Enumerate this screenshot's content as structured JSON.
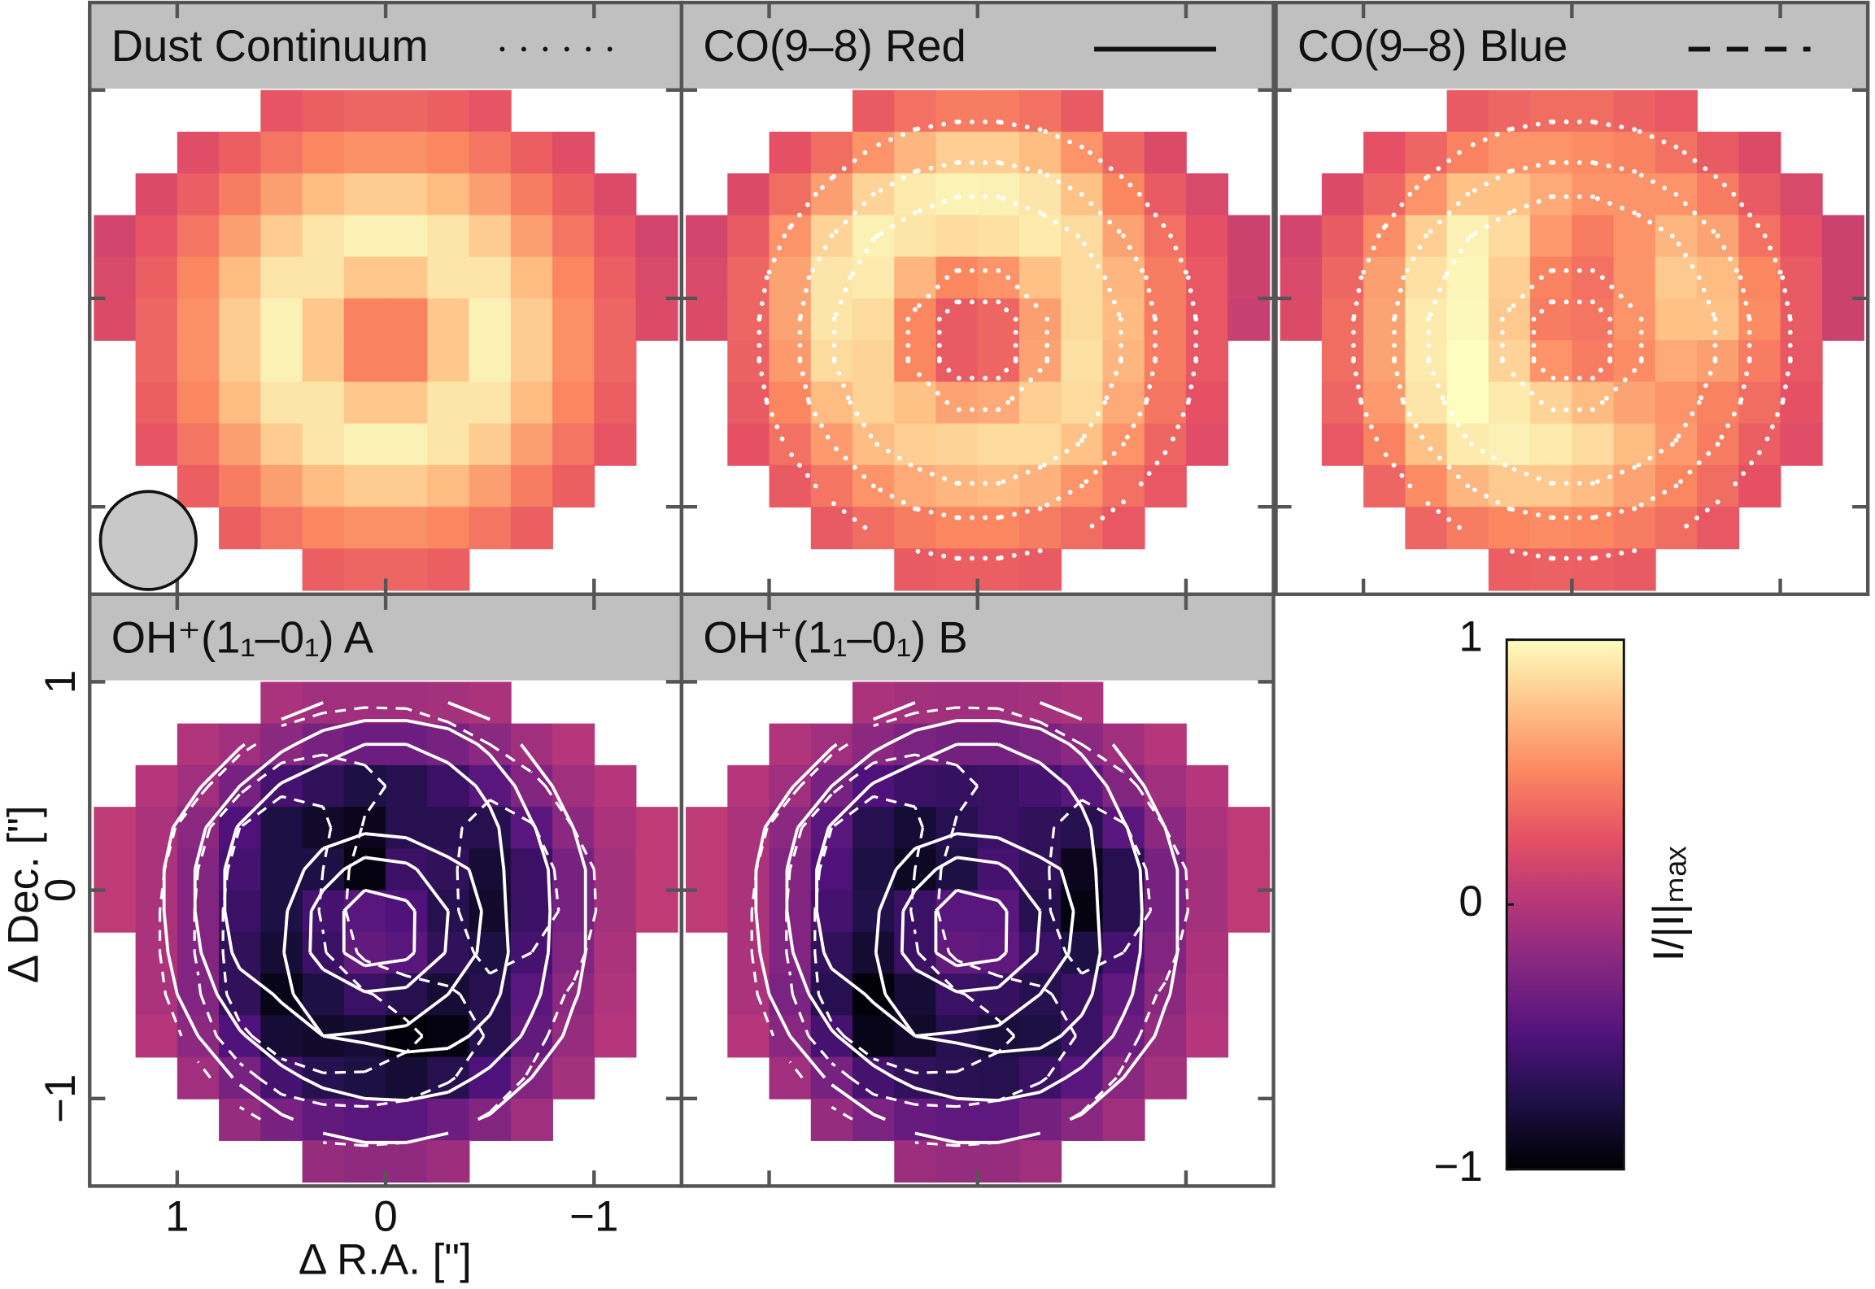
{
  "chart_data": {
    "type": "heatmap",
    "xlabel": "Δ R.A. [\"]",
    "ylabel": "Δ Dec. [\"]",
    "xlim": [
      1.42,
      -1.42
    ],
    "ylim": [
      -1.42,
      1.42
    ],
    "xticks": [
      1,
      0,
      {
        "value": -1,
        "label": "−1"
      }
    ],
    "yticks": [
      1,
      0,
      {
        "value": -1,
        "label": "−1"
      }
    ],
    "colormap": "magma",
    "colorbar": {
      "label": "I/|I|ₘₐₓ",
      "lim": [
        -1,
        1
      ],
      "ticks": [
        1,
        0,
        {
          "value": -1,
          "label": "−1"
        }
      ]
    },
    "contour_levels": [
      0.4,
      0.6,
      0.8
    ],
    "x": [
      1.3,
      1.1,
      0.9,
      0.7,
      0.5,
      0.3,
      0.1,
      -0.1,
      -0.3,
      -0.5,
      -0.7,
      -0.9,
      -1.1,
      -1.3
    ],
    "y": [
      0.9,
      0.7,
      0.5,
      0.3,
      0.1,
      -0.1,
      -0.3,
      -0.5,
      -0.7,
      -0.9,
      -1.1,
      -1.3
    ],
    "panels": [
      {
        "title": "Dust Continuum",
        "linestyle": "dotted",
        "overlay": [],
        "values": [
          [
            null,
            null,
            null,
            null,
            0.27,
            0.32,
            0.35,
            0.35,
            0.32,
            0.27,
            null,
            null,
            null,
            null
          ],
          [
            null,
            null,
            0.22,
            0.32,
            0.42,
            0.5,
            0.54,
            0.54,
            0.5,
            0.42,
            0.32,
            0.22,
            null,
            null
          ],
          [
            null,
            0.2,
            0.32,
            0.45,
            0.6,
            0.72,
            0.79,
            0.79,
            0.72,
            0.6,
            0.45,
            0.32,
            0.2,
            null
          ],
          [
            0.15,
            0.27,
            0.42,
            0.6,
            0.79,
            0.9,
            0.95,
            0.95,
            0.9,
            0.79,
            0.6,
            0.42,
            0.27,
            0.15
          ],
          [
            0.18,
            0.32,
            0.5,
            0.72,
            0.9,
            0.9,
            0.77,
            0.77,
            0.9,
            0.9,
            0.72,
            0.5,
            0.32,
            0.18
          ],
          [
            0.2,
            0.35,
            0.54,
            0.79,
            0.95,
            0.77,
            0.48,
            0.48,
            0.77,
            0.95,
            0.79,
            0.54,
            0.35,
            0.2
          ],
          [
            null,
            0.35,
            0.54,
            0.79,
            0.95,
            0.77,
            0.48,
            0.48,
            0.77,
            0.95,
            0.79,
            0.54,
            0.35,
            null
          ],
          [
            null,
            0.32,
            0.5,
            0.72,
            0.9,
            0.9,
            0.77,
            0.77,
            0.9,
            0.9,
            0.72,
            0.5,
            0.32,
            null
          ],
          [
            null,
            0.27,
            0.42,
            0.6,
            0.79,
            0.9,
            0.95,
            0.95,
            0.9,
            0.79,
            0.6,
            0.42,
            0.27,
            null
          ],
          [
            null,
            null,
            0.32,
            0.45,
            0.6,
            0.72,
            0.79,
            0.79,
            0.72,
            0.6,
            0.45,
            0.32,
            null,
            null
          ],
          [
            null,
            null,
            null,
            0.32,
            0.42,
            0.5,
            0.54,
            0.54,
            0.5,
            0.42,
            0.32,
            null,
            null,
            null
          ],
          [
            null,
            null,
            null,
            null,
            null,
            0.32,
            0.35,
            0.35,
            0.32,
            null,
            null,
            null,
            null,
            null
          ]
        ]
      },
      {
        "title": "CO(9–8) Red",
        "linestyle": "solid",
        "overlay": [
          0
        ],
        "values": [
          [
            null,
            null,
            null,
            null,
            0.3,
            0.4,
            0.45,
            0.45,
            0.4,
            0.3,
            null,
            null,
            null,
            null
          ],
          [
            null,
            null,
            0.25,
            0.38,
            0.55,
            0.7,
            0.8,
            0.8,
            0.72,
            0.55,
            0.35,
            0.2,
            null,
            null
          ],
          [
            null,
            0.2,
            0.38,
            0.6,
            0.82,
            0.92,
            0.96,
            0.95,
            0.9,
            0.75,
            0.5,
            0.3,
            0.18,
            null
          ],
          [
            0.15,
            0.3,
            0.55,
            0.82,
            0.95,
            0.9,
            0.85,
            0.88,
            0.92,
            0.85,
            0.62,
            0.4,
            0.25,
            0.12
          ],
          [
            0.18,
            0.35,
            0.62,
            0.9,
            0.92,
            0.7,
            0.5,
            0.55,
            0.75,
            0.85,
            0.7,
            0.45,
            0.28,
            0.12
          ],
          [
            0.2,
            0.35,
            0.62,
            0.9,
            0.85,
            0.5,
            0.3,
            0.35,
            0.6,
            0.85,
            0.72,
            0.45,
            0.28,
            0.1
          ],
          [
            null,
            0.33,
            0.58,
            0.85,
            0.82,
            0.5,
            0.3,
            0.35,
            0.62,
            0.88,
            0.7,
            0.45,
            0.28,
            null
          ],
          [
            null,
            0.3,
            0.5,
            0.72,
            0.82,
            0.75,
            0.62,
            0.65,
            0.8,
            0.85,
            0.65,
            0.42,
            0.25,
            null
          ],
          [
            null,
            0.25,
            0.4,
            0.58,
            0.72,
            0.8,
            0.82,
            0.85,
            0.85,
            0.75,
            0.55,
            0.35,
            0.22,
            null
          ],
          [
            null,
            null,
            0.3,
            0.42,
            0.55,
            0.65,
            0.7,
            0.72,
            0.68,
            0.55,
            0.4,
            0.28,
            null,
            null
          ],
          [
            null,
            null,
            null,
            0.3,
            0.38,
            0.45,
            0.5,
            0.5,
            0.45,
            0.38,
            0.28,
            null,
            null,
            null
          ],
          [
            null,
            null,
            null,
            null,
            null,
            0.3,
            0.32,
            0.32,
            0.3,
            null,
            null,
            null,
            null,
            null
          ]
        ]
      },
      {
        "title": "CO(9–8) Blue",
        "linestyle": "dashed",
        "overlay": [
          0
        ],
        "values": [
          [
            null,
            null,
            null,
            null,
            0.3,
            0.35,
            0.38,
            0.38,
            0.33,
            0.28,
            null,
            null,
            null,
            null
          ],
          [
            null,
            null,
            0.25,
            0.35,
            0.48,
            0.55,
            0.55,
            0.52,
            0.48,
            0.4,
            0.3,
            0.2,
            null,
            null
          ],
          [
            null,
            0.2,
            0.35,
            0.55,
            0.75,
            0.75,
            0.65,
            0.55,
            0.55,
            0.55,
            0.45,
            0.3,
            0.18,
            null
          ],
          [
            0.15,
            0.3,
            0.52,
            0.8,
            0.95,
            0.85,
            0.58,
            0.45,
            0.55,
            0.7,
            0.62,
            0.4,
            0.25,
            0.12
          ],
          [
            0.18,
            0.35,
            0.6,
            0.88,
            0.97,
            0.8,
            0.48,
            0.4,
            0.55,
            0.78,
            0.72,
            0.5,
            0.3,
            0.12
          ],
          [
            0.2,
            0.38,
            0.62,
            0.92,
            0.98,
            0.78,
            0.45,
            0.42,
            0.55,
            0.75,
            0.75,
            0.52,
            0.3,
            0.12
          ],
          [
            null,
            0.38,
            0.62,
            0.92,
            1.0,
            0.82,
            0.55,
            0.45,
            0.52,
            0.65,
            0.6,
            0.45,
            0.28,
            null
          ],
          [
            null,
            0.35,
            0.58,
            0.9,
            1.0,
            0.92,
            0.82,
            0.72,
            0.62,
            0.55,
            0.48,
            0.38,
            0.25,
            null
          ],
          [
            null,
            0.28,
            0.48,
            0.75,
            0.92,
            0.95,
            0.92,
            0.85,
            0.72,
            0.58,
            0.45,
            0.32,
            0.22,
            null
          ],
          [
            null,
            null,
            0.35,
            0.52,
            0.7,
            0.78,
            0.78,
            0.72,
            0.62,
            0.5,
            0.38,
            0.25,
            null,
            null
          ],
          [
            null,
            null,
            null,
            0.35,
            0.45,
            0.5,
            0.52,
            0.5,
            0.45,
            0.38,
            0.28,
            null,
            null,
            null
          ],
          [
            null,
            null,
            null,
            null,
            null,
            0.32,
            0.33,
            0.32,
            0.3,
            null,
            null,
            null,
            null,
            null
          ]
        ]
      },
      {
        "title": "OH⁺(1₁–0₁) A",
        "overlay": [
          1,
          2
        ],
        "values": [
          [
            null,
            null,
            null,
            null,
            -0.05,
            -0.1,
            -0.1,
            -0.1,
            -0.08,
            -0.05,
            null,
            null,
            null,
            null
          ],
          [
            null,
            null,
            -0.02,
            -0.1,
            -0.2,
            -0.3,
            -0.35,
            -0.35,
            -0.3,
            -0.2,
            -0.1,
            0.0,
            null,
            null
          ],
          [
            null,
            0.0,
            -0.1,
            -0.3,
            -0.55,
            -0.65,
            -0.75,
            -0.7,
            -0.6,
            -0.45,
            -0.25,
            -0.1,
            0.0,
            null
          ],
          [
            0.05,
            -0.05,
            -0.2,
            -0.5,
            -0.75,
            -0.85,
            -0.9,
            -0.7,
            -0.7,
            -0.7,
            -0.45,
            -0.2,
            -0.05,
            0.05
          ],
          [
            0.05,
            -0.05,
            -0.25,
            -0.55,
            -0.75,
            -0.75,
            -0.95,
            -0.6,
            -0.65,
            -0.8,
            -0.6,
            -0.3,
            -0.08,
            0.05
          ],
          [
            0.05,
            -0.05,
            -0.25,
            -0.6,
            -0.75,
            -0.55,
            -0.45,
            -0.5,
            -0.7,
            -0.85,
            -0.6,
            -0.3,
            -0.08,
            0.05
          ],
          [
            null,
            -0.05,
            -0.25,
            -0.65,
            -0.8,
            -0.6,
            -0.4,
            -0.45,
            -0.65,
            -0.75,
            -0.55,
            -0.25,
            -0.05,
            null
          ],
          [
            null,
            -0.05,
            -0.25,
            -0.65,
            -0.92,
            -0.75,
            -0.6,
            -0.7,
            -0.8,
            -0.7,
            -0.45,
            -0.2,
            -0.03,
            null
          ],
          [
            null,
            0.0,
            -0.2,
            -0.5,
            -0.8,
            -0.85,
            -0.8,
            -0.98,
            -0.95,
            -0.7,
            -0.4,
            -0.15,
            0.0,
            null
          ],
          [
            null,
            null,
            -0.1,
            -0.3,
            -0.55,
            -0.7,
            -0.75,
            -0.8,
            -0.7,
            -0.5,
            -0.25,
            -0.08,
            null,
            null
          ],
          [
            null,
            null,
            null,
            -0.15,
            -0.3,
            -0.4,
            -0.45,
            -0.45,
            -0.35,
            -0.25,
            -0.1,
            null,
            null,
            null
          ],
          [
            null,
            null,
            null,
            null,
            null,
            -0.15,
            -0.18,
            -0.18,
            -0.12,
            null,
            null,
            null,
            null,
            null
          ]
        ]
      },
      {
        "title": "OH⁺(1₁–0₁) B",
        "overlay": [
          1,
          2
        ],
        "values": [
          [
            null,
            null,
            null,
            null,
            -0.05,
            -0.08,
            -0.1,
            -0.1,
            -0.08,
            -0.05,
            null,
            null,
            null,
            null
          ],
          [
            null,
            null,
            -0.02,
            -0.1,
            -0.2,
            -0.28,
            -0.32,
            -0.32,
            -0.28,
            -0.2,
            -0.1,
            0.0,
            null,
            null
          ],
          [
            null,
            0.0,
            -0.1,
            -0.3,
            -0.5,
            -0.6,
            -0.62,
            -0.6,
            -0.55,
            -0.45,
            -0.25,
            -0.1,
            0.0,
            null
          ],
          [
            0.05,
            -0.05,
            -0.2,
            -0.45,
            -0.7,
            -0.8,
            -0.7,
            -0.6,
            -0.65,
            -0.7,
            -0.45,
            -0.2,
            -0.05,
            0.05
          ],
          [
            0.05,
            -0.05,
            -0.25,
            -0.5,
            -0.75,
            -0.88,
            -0.75,
            -0.55,
            -0.65,
            -0.9,
            -0.7,
            -0.3,
            -0.08,
            0.05
          ],
          [
            0.05,
            -0.05,
            -0.25,
            -0.55,
            -0.72,
            -0.6,
            -0.45,
            -0.45,
            -0.7,
            -0.95,
            -0.7,
            -0.3,
            -0.08,
            0.05
          ],
          [
            null,
            -0.05,
            -0.25,
            -0.65,
            -0.82,
            -0.6,
            -0.4,
            -0.42,
            -0.6,
            -0.75,
            -0.55,
            -0.25,
            -0.05,
            null
          ],
          [
            null,
            -0.05,
            -0.28,
            -0.7,
            -0.98,
            -0.8,
            -0.6,
            -0.62,
            -0.7,
            -0.6,
            -0.42,
            -0.2,
            -0.03,
            null
          ],
          [
            null,
            0.0,
            -0.22,
            -0.55,
            -0.92,
            -0.85,
            -0.7,
            -0.78,
            -0.75,
            -0.6,
            -0.35,
            -0.15,
            0.0,
            null
          ],
          [
            null,
            null,
            -0.1,
            -0.3,
            -0.55,
            -0.65,
            -0.68,
            -0.7,
            -0.6,
            -0.45,
            -0.22,
            -0.08,
            null,
            null
          ],
          [
            null,
            null,
            null,
            -0.15,
            -0.28,
            -0.38,
            -0.42,
            -0.42,
            -0.32,
            -0.22,
            -0.1,
            null,
            null,
            null
          ],
          [
            null,
            null,
            null,
            null,
            null,
            -0.12,
            -0.15,
            -0.15,
            -0.1,
            null,
            null,
            null,
            null,
            null
          ]
        ]
      }
    ]
  }
}
